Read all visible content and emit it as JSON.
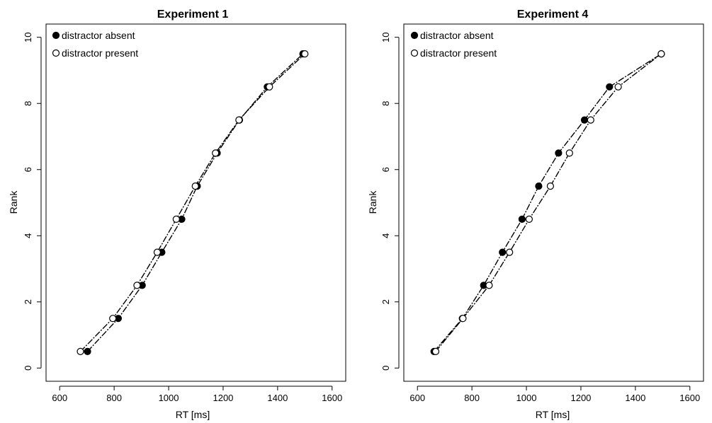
{
  "chart_data": [
    {
      "type": "line",
      "title": "Experiment 1",
      "xlabel": "RT [ms]",
      "ylabel": "Rank",
      "xlim": [
        550,
        1650
      ],
      "ylim": [
        -0.4,
        10.4
      ],
      "xticks": [
        600,
        800,
        1000,
        1200,
        1400,
        1600
      ],
      "yticks": [
        0,
        2,
        4,
        6,
        8,
        10
      ],
      "legend_position": "top-left",
      "grid": false,
      "series": [
        {
          "name": "distractor absent",
          "marker": "filled-circle",
          "x": [
            702,
            815,
            903,
            975,
            1048,
            1105,
            1178,
            1260,
            1362,
            1493
          ],
          "y": [
            0.5,
            1.5,
            2.5,
            3.5,
            4.5,
            5.5,
            6.5,
            7.5,
            8.5,
            9.5
          ]
        },
        {
          "name": "distractor present",
          "marker": "open-circle",
          "x": [
            676,
            795,
            884,
            958,
            1028,
            1098,
            1172,
            1258,
            1370,
            1500
          ],
          "y": [
            0.5,
            1.5,
            2.5,
            3.5,
            4.5,
            5.5,
            6.5,
            7.5,
            8.5,
            9.5
          ]
        }
      ]
    },
    {
      "type": "line",
      "title": "Experiment 4",
      "xlabel": "RT [ms]",
      "ylabel": "Rank",
      "xlim": [
        550,
        1650
      ],
      "ylim": [
        -0.4,
        10.4
      ],
      "xticks": [
        600,
        800,
        1000,
        1200,
        1400,
        1600
      ],
      "yticks": [
        0,
        2,
        4,
        6,
        8,
        10
      ],
      "legend_position": "top-left",
      "grid": false,
      "series": [
        {
          "name": "distractor absent",
          "marker": "filled-circle",
          "x": [
            661,
            765,
            843,
            912,
            984,
            1045,
            1118,
            1213,
            1305,
            1495
          ],
          "y": [
            0.5,
            1.5,
            2.5,
            3.5,
            4.5,
            5.5,
            6.5,
            7.5,
            8.5,
            9.5
          ]
        },
        {
          "name": "distractor present",
          "marker": "open-circle",
          "x": [
            667,
            767,
            863,
            938,
            1010,
            1088,
            1158,
            1236,
            1337,
            1495
          ],
          "y": [
            0.5,
            1.5,
            2.5,
            3.5,
            4.5,
            5.5,
            6.5,
            7.5,
            8.5,
            9.5
          ]
        }
      ]
    }
  ]
}
